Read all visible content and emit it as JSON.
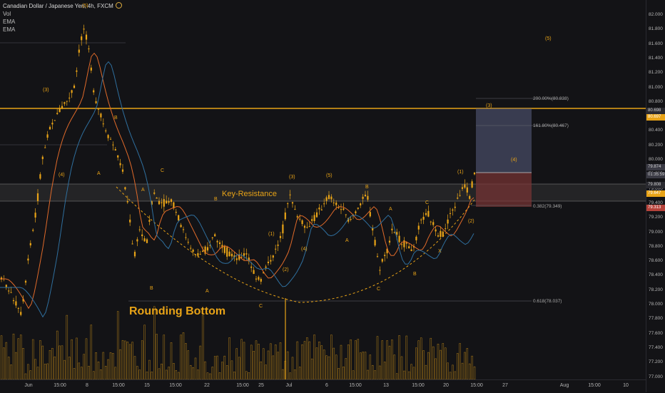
{
  "legend": {
    "symbol": "Canadian Dollar / Japanese Yen, 4h, FXCM",
    "lines": [
      "Vol",
      "EMA",
      "EMA"
    ]
  },
  "price_axis": {
    "ticks": [
      "82.000",
      "81.800",
      "81.600",
      "81.400",
      "81.200",
      "81.000",
      "80.800",
      "80.600",
      "80.400",
      "80.200",
      "80.000",
      "79.800",
      "79.600",
      "79.400",
      "79.200",
      "79.000",
      "78.800",
      "78.600",
      "78.400",
      "78.200",
      "78.000",
      "77.800",
      "77.600",
      "77.400",
      "77.200",
      "77.000"
    ],
    "badges": [
      {
        "text": "80.698",
        "fg": "#d0d0d0",
        "bg": "#2a2a30"
      },
      {
        "text": "80.697",
        "fg": "#ffffff",
        "bg": "#e8a317"
      },
      {
        "text": "79.874",
        "fg": "#d0d0d0",
        "bg": "#3a3a44"
      },
      {
        "text": "01:35:59",
        "fg": "#d0d0d0",
        "bg": "#3a3a44"
      },
      {
        "text": "79.808",
        "fg": "#d0d0d0",
        "bg": "#2a2a30"
      },
      {
        "text": "79.647",
        "fg": "#ffffff",
        "bg": "#e8a317"
      },
      {
        "text": "79.313",
        "fg": "#ffffff",
        "bg": "#b5423a"
      }
    ]
  },
  "time_axis": {
    "ticks": [
      "Jun",
      "15:00",
      "8",
      "15:00",
      "15",
      "15:00",
      "22",
      "15:00",
      "25",
      "Jul",
      "6",
      "15:00",
      "13",
      "15:00",
      "20",
      "15:00",
      "27",
      "Aug",
      "15:00",
      "10"
    ]
  },
  "annotations": {
    "key_resistance": "Key-Resistance",
    "rounding_bottom": "Rounding Bottom",
    "fib_200": "200.00%(80.838)",
    "fib_161": "161.80%(80.467)",
    "fib_0382": "0.382(79.349)",
    "fib_0618": "0.618(78.037)"
  },
  "wave_labels": [
    {
      "t": "(3)"
    },
    {
      "t": "(4)"
    },
    {
      "t": "(5)"
    },
    {
      "t": "B"
    },
    {
      "t": "A"
    },
    {
      "t": "C"
    },
    {
      "t": "A"
    },
    {
      "t": "B"
    },
    {
      "t": "B"
    },
    {
      "t": "A"
    },
    {
      "t": "C"
    },
    {
      "t": "(1)"
    },
    {
      "t": "(2)"
    },
    {
      "t": "(3)"
    },
    {
      "t": "(4)"
    },
    {
      "t": "(5)"
    },
    {
      "t": "A"
    },
    {
      "t": "B"
    },
    {
      "t": "C"
    },
    {
      "t": "A"
    },
    {
      "t": "C"
    },
    {
      "t": "B"
    },
    {
      "t": "X"
    },
    {
      "t": "(1)"
    },
    {
      "t": "(2)"
    },
    {
      "t": "(3)"
    },
    {
      "t": "(4)"
    },
    {
      "t": "(5)"
    }
  ],
  "colors": {
    "background": "#131316",
    "candle": "#e8a317",
    "ema_fast": "#e06a2a",
    "ema_slow": "#2f6f9e",
    "resistance_line": "#e8a317",
    "profit_zone": "#5a5f82",
    "loss_zone": "#7a3535"
  }
}
